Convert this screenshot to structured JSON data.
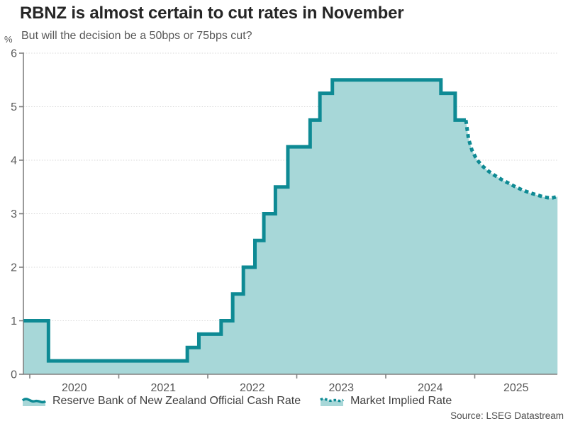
{
  "header": {
    "title": "RBNZ is almost certain to cut rates in November",
    "subtitle": "But will the decision be a 50bps or 75bps cut?"
  },
  "source": "Source: LSEG Datastream",
  "colors": {
    "line": "#0e8a94",
    "fill": "#a7d7d8",
    "grid": "#d9d9d9",
    "axis": "#808080",
    "title_text": "#262626",
    "subtitle_text": "#595959",
    "tick_label": "#595959",
    "legend_text": "#404040",
    "source_text": "#4d4d4d"
  },
  "chart_data": {
    "type": "line",
    "title": "RBNZ is almost certain to cut rates in November",
    "subtitle": "But will the decision be a 50bps or 75bps cut?",
    "unit": "%",
    "ylabel": "%",
    "xlabel": "",
    "ylim": [
      0,
      6
    ],
    "y_ticks": [
      0,
      1,
      2,
      3,
      4,
      5,
      6
    ],
    "x_ticks": [
      "2020",
      "2021",
      "2022",
      "2023",
      "2024",
      "2025"
    ],
    "xlim_years": [
      2019.93,
      2025.93
    ],
    "grid": "horizontal dotted",
    "legend_position": "bottom-left",
    "series": [
      {
        "name": "Reserve Bank of New Zealand Official Cash Rate",
        "type": "step-after",
        "line_style": "solid",
        "points": [
          [
            2019.93,
            1.0
          ],
          [
            2020.21,
            0.25
          ],
          [
            2021.77,
            0.5
          ],
          [
            2021.9,
            0.75
          ],
          [
            2022.15,
            1.0
          ],
          [
            2022.28,
            1.5
          ],
          [
            2022.4,
            2.0
          ],
          [
            2022.53,
            2.5
          ],
          [
            2022.63,
            3.0
          ],
          [
            2022.76,
            3.5
          ],
          [
            2022.9,
            4.25
          ],
          [
            2023.15,
            4.75
          ],
          [
            2023.26,
            5.25
          ],
          [
            2023.4,
            5.5
          ],
          [
            2024.62,
            5.25
          ],
          [
            2024.78,
            4.75
          ],
          [
            2024.9,
            4.75
          ]
        ]
      },
      {
        "name": "Market Implied Rate",
        "type": "line",
        "line_style": "dotted",
        "points": [
          [
            2024.9,
            4.75
          ],
          [
            2024.93,
            4.4
          ],
          [
            2024.97,
            4.18
          ],
          [
            2025.02,
            4.02
          ],
          [
            2025.08,
            3.9
          ],
          [
            2025.15,
            3.8
          ],
          [
            2025.22,
            3.72
          ],
          [
            2025.3,
            3.64
          ],
          [
            2025.38,
            3.57
          ],
          [
            2025.46,
            3.5
          ],
          [
            2025.54,
            3.44
          ],
          [
            2025.62,
            3.39
          ],
          [
            2025.7,
            3.35
          ],
          [
            2025.78,
            3.31
          ],
          [
            2025.86,
            3.29
          ],
          [
            2025.93,
            3.32
          ]
        ]
      }
    ]
  }
}
